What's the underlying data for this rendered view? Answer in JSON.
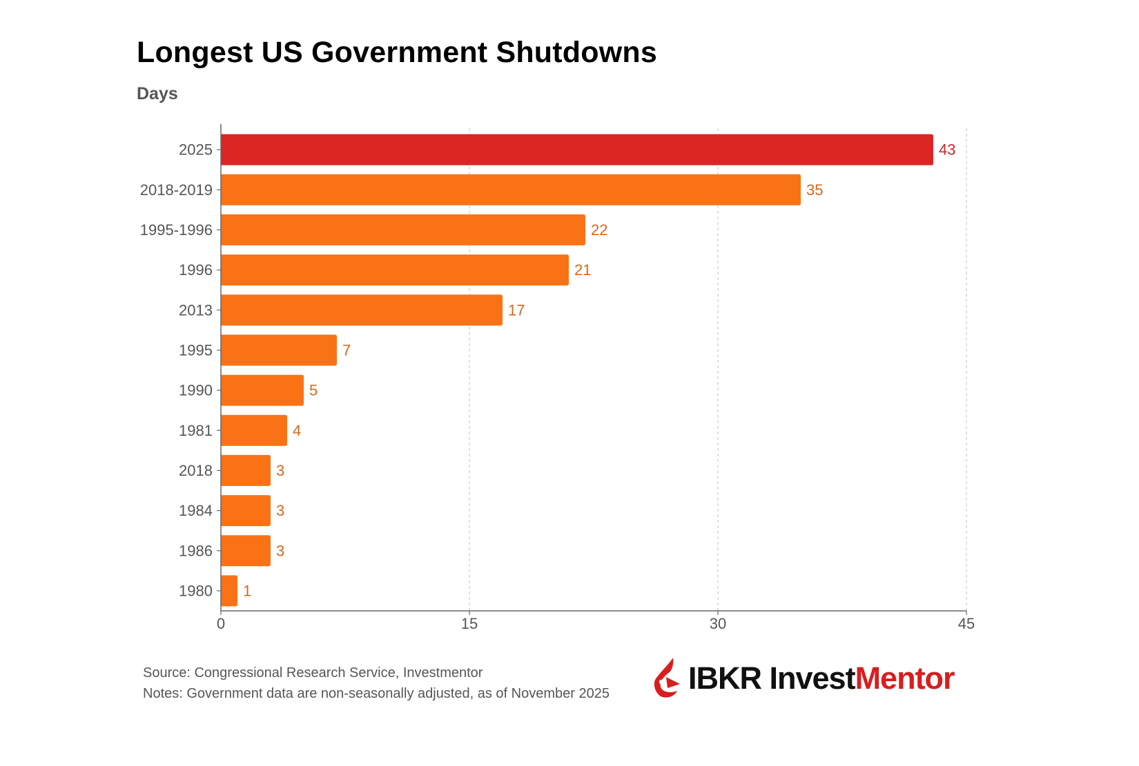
{
  "chart_data": {
    "type": "bar",
    "orientation": "horizontal",
    "title": "Longest US Government Shutdowns",
    "subtitle": "Days",
    "xlabel": "",
    "ylabel": "",
    "categories": [
      "2025",
      "2018-2019",
      "1995-1996",
      "1996",
      "2013",
      "1995",
      "1990",
      "1981",
      "2018",
      "1984",
      "1986",
      "1980"
    ],
    "values": [
      43,
      35,
      22,
      21,
      17,
      7,
      5,
      4,
      3,
      3,
      3,
      1
    ],
    "xlim": [
      0,
      45
    ],
    "xticks": [
      0,
      15,
      30,
      45
    ],
    "grid": true,
    "highlight_index": 0,
    "colors": {
      "highlight_bar": "#dc2626",
      "highlight_label": "#c62828",
      "bar": "#f97316",
      "label": "#d2691e",
      "axis": "#666666",
      "gridline": "#cccccc",
      "tick_label": "#555555"
    }
  },
  "footer": {
    "source": "Source: Congressional Research Service, Investmentor",
    "notes": "Notes: Government data are non-seasonally adjusted, as of November 2025"
  },
  "brand": {
    "logo_icon": "ibkr-logo-icon",
    "name_part1": "IBKR Invest",
    "name_part2": "Mentor",
    "color_part1": "#111111",
    "color_part2": "#d81e1e"
  }
}
